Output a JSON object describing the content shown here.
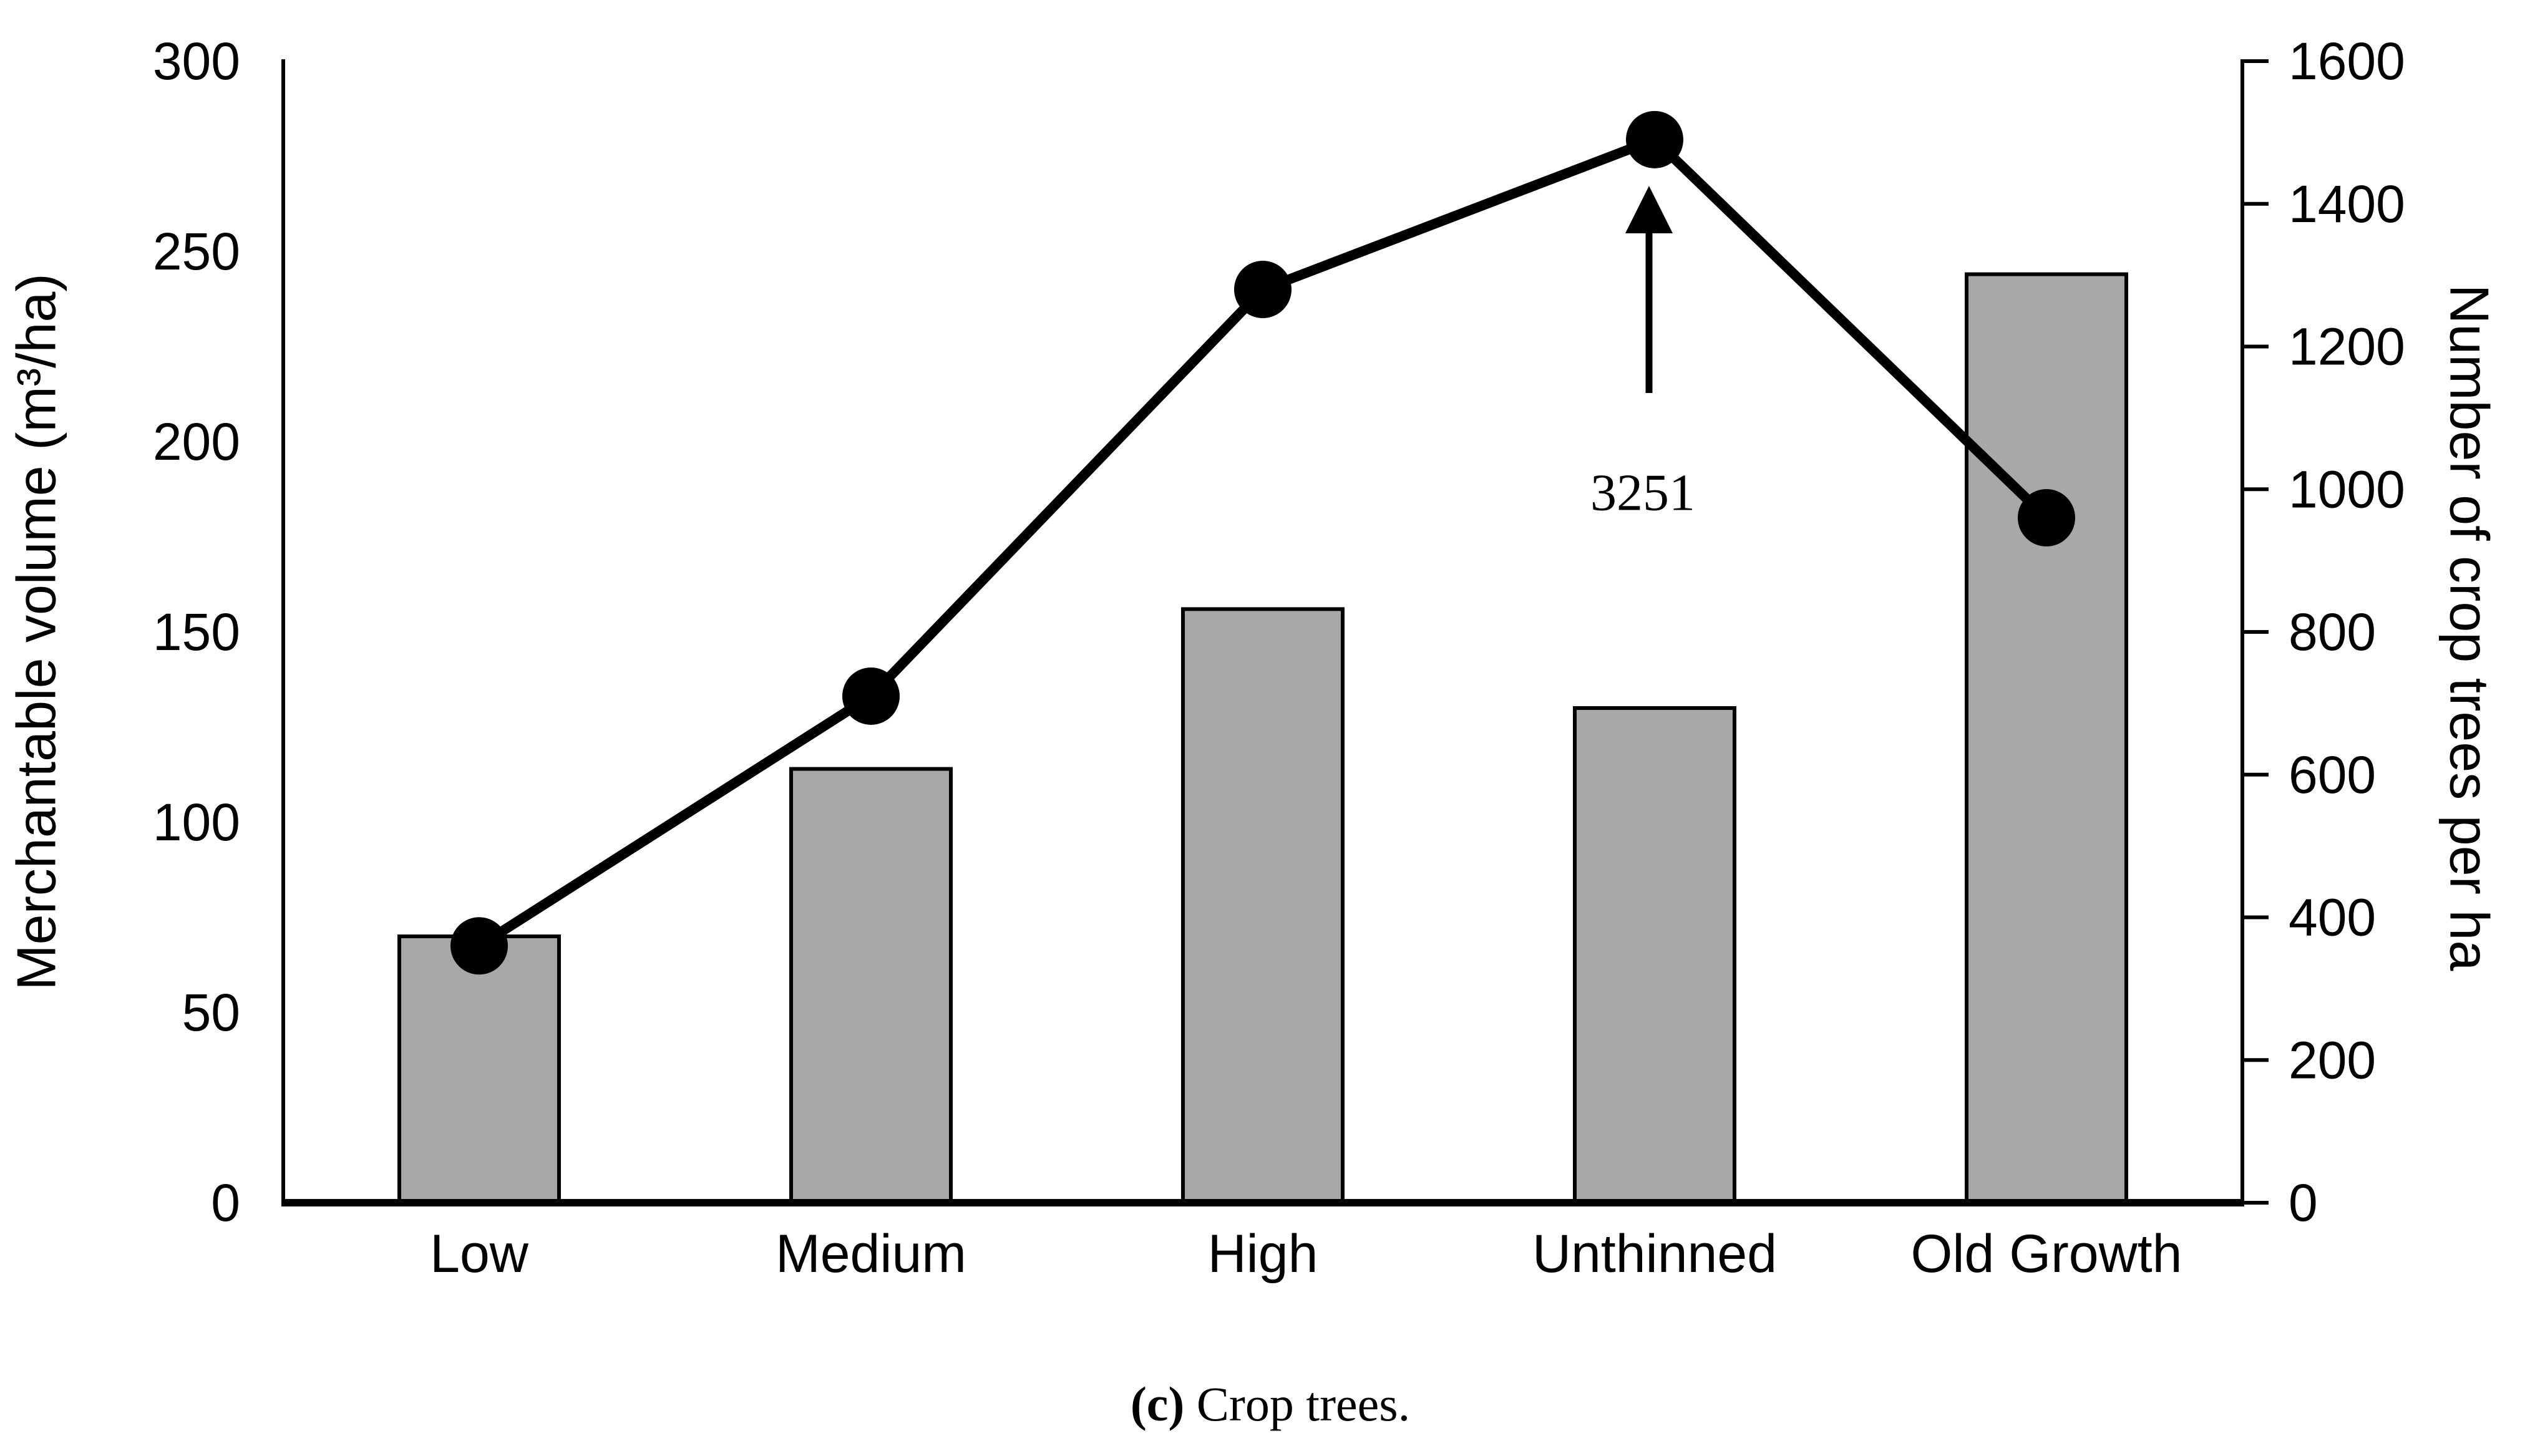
{
  "figure": {
    "caption_label": "(c)",
    "caption_text": " Crop trees."
  },
  "chart_data": {
    "type": "bar",
    "subtype": "bar-and-line-dual-axis",
    "title": "",
    "categories": [
      "Low",
      "Medium",
      "High",
      "Unthinned",
      "Old Growth"
    ],
    "series": [
      {
        "name": "Merchantable volume",
        "type": "bar",
        "axis": "left",
        "values": [
          70,
          114,
          156,
          130,
          244
        ]
      },
      {
        "name": "Number of crop trees",
        "type": "line",
        "axis": "right",
        "values": [
          360,
          710,
          1280,
          3251,
          960
        ],
        "plotted_values": [
          360,
          710,
          1280,
          1490,
          960
        ],
        "note": "Unthinned point (3251) is plotted off-scale at ~1490 and labeled via arrow annotation"
      }
    ],
    "left_axis": {
      "label": "Merchantable volume (m³/ha)",
      "min": 0,
      "max": 300,
      "ticks": [
        0,
        50,
        100,
        150,
        200,
        250,
        300
      ]
    },
    "right_axis": {
      "label": "Number of crop trees per ha",
      "min": 0,
      "max": 1600,
      "ticks": [
        0,
        200,
        400,
        600,
        800,
        1000,
        1200,
        1400,
        1600
      ]
    },
    "annotation": {
      "text": "3251",
      "target_category": "Unthinned"
    },
    "legend": "none",
    "grid": false,
    "colors": {
      "bar_fill": "#A8A8A8",
      "bar_border": "#000000",
      "line": "#000000",
      "marker": "#000000",
      "text": "#000000",
      "background": "#FFFFFF"
    }
  }
}
